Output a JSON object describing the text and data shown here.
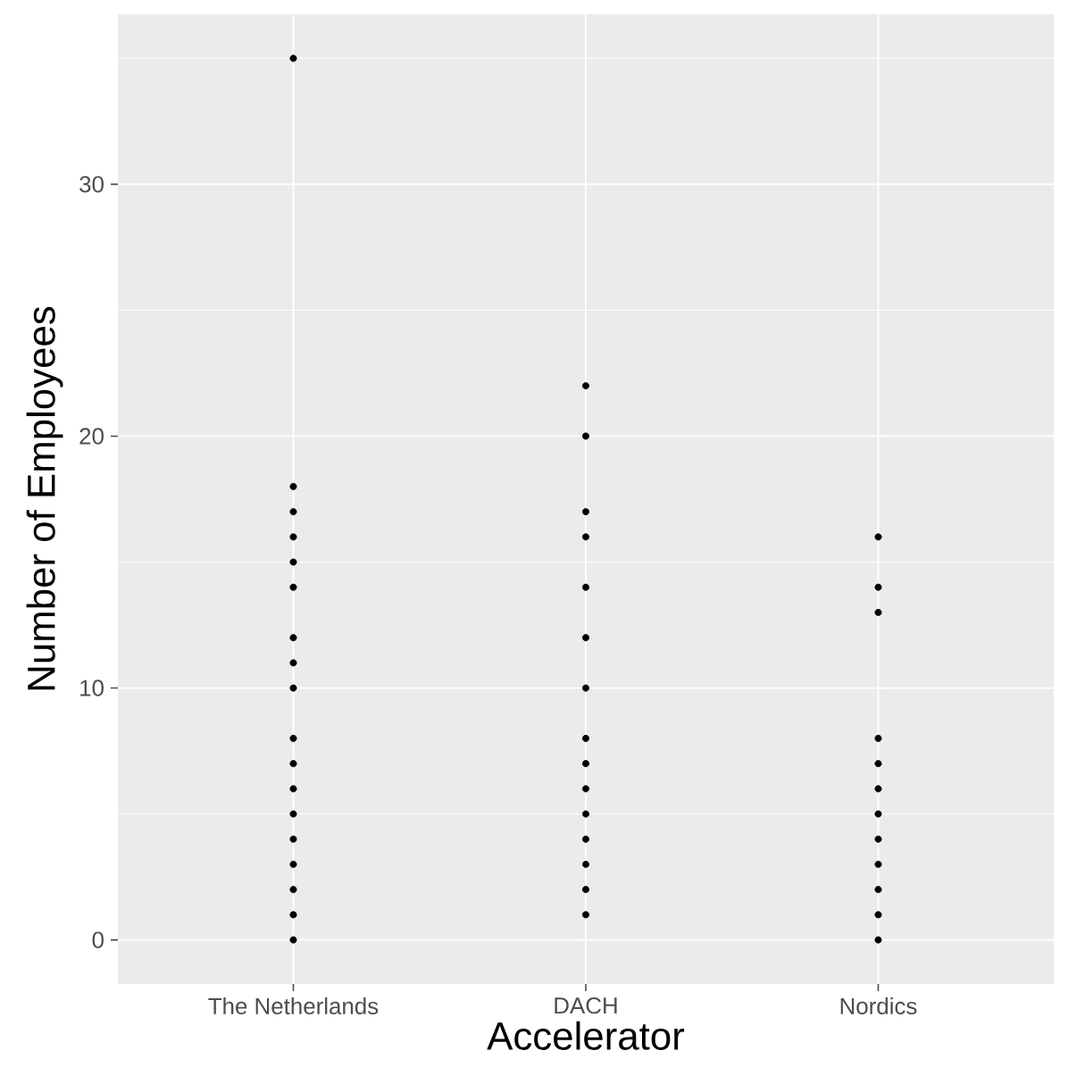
{
  "chart_data": {
    "type": "scatter",
    "xlabel": "Accelerator",
    "ylabel": "Number of Employees",
    "categories": [
      "The Netherlands",
      "DACH",
      "Nordics"
    ],
    "series": [
      {
        "color": "#000000",
        "x": [
          "The Netherlands",
          "The Netherlands",
          "The Netherlands",
          "The Netherlands",
          "The Netherlands",
          "The Netherlands",
          "The Netherlands",
          "The Netherlands",
          "The Netherlands",
          "The Netherlands",
          "The Netherlands",
          "The Netherlands",
          "The Netherlands",
          "The Netherlands",
          "The Netherlands",
          "The Netherlands",
          "The Netherlands",
          "The Netherlands"
        ],
        "values": [
          35,
          18,
          17,
          16,
          15,
          14,
          12,
          11,
          10,
          8,
          7,
          6,
          5,
          4,
          3,
          2,
          1,
          0
        ]
      },
      {
        "color": "#000000",
        "x": [
          "DACH",
          "DACH",
          "DACH",
          "DACH",
          "DACH",
          "DACH",
          "DACH",
          "DACH",
          "DACH",
          "DACH",
          "DACH",
          "DACH",
          "DACH",
          "DACH",
          "DACH"
        ],
        "values": [
          22,
          20,
          17,
          16,
          14,
          12,
          10,
          8,
          7,
          6,
          5,
          4,
          3,
          2,
          1
        ]
      },
      {
        "color": "#000000",
        "x": [
          "Nordics",
          "Nordics",
          "Nordics",
          "Nordics",
          "Nordics",
          "Nordics",
          "Nordics",
          "Nordics",
          "Nordics",
          "Nordics",
          "Nordics",
          "Nordics"
        ],
        "values": [
          16,
          14,
          13,
          8,
          7,
          6,
          5,
          4,
          3,
          2,
          1,
          0
        ]
      }
    ],
    "ylim": [
      -1.75,
      36.75
    ],
    "yticks": [
      0,
      10,
      20,
      30
    ],
    "grid": true,
    "marker": "circle"
  }
}
